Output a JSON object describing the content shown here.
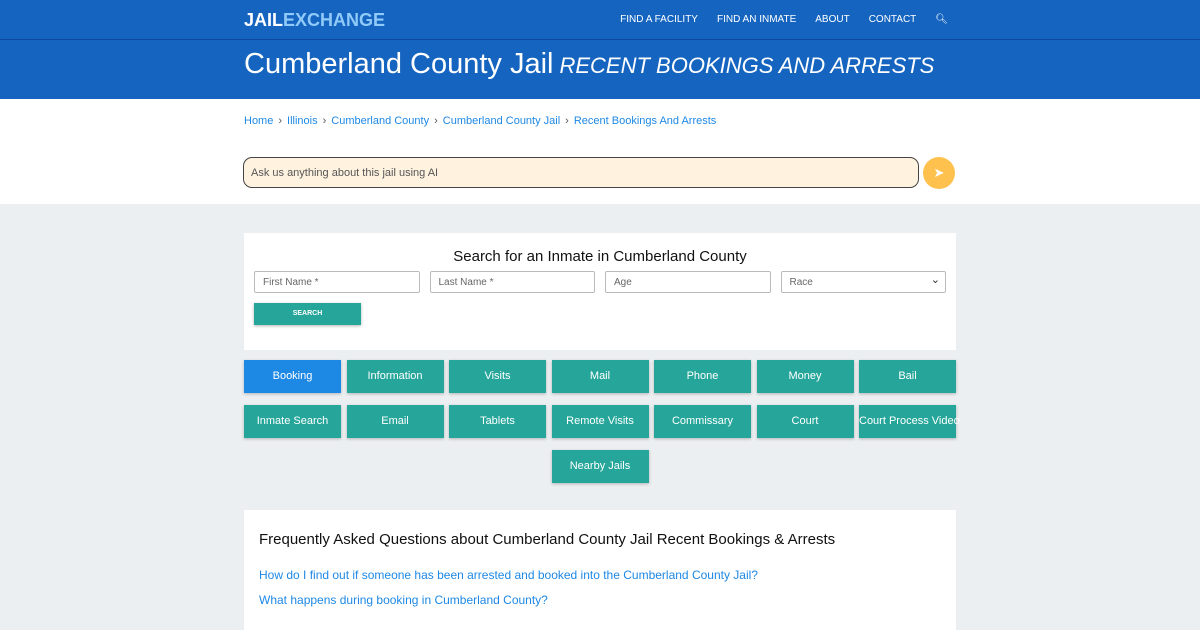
{
  "nav": {
    "logo_a": "JAIL",
    "logo_b": "EXCHANGE",
    "items": [
      "FIND A FACILITY",
      "FIND AN INMATE",
      "ABOUT",
      "CONTACT"
    ]
  },
  "hero": {
    "title": "Cumberland County Jail",
    "subtitle": "RECENT BOOKINGS AND ARRESTS"
  },
  "breadcrumb": [
    "Home",
    "Illinois",
    "Cumberland County",
    "Cumberland County Jail",
    "Recent Bookings And Arrests"
  ],
  "ai": {
    "placeholder": "Ask us anything about this jail using AI"
  },
  "search": {
    "title": "Search for an Inmate in Cumberland County",
    "first": "First Name *",
    "last": "Last Name *",
    "age": "Age",
    "race": "Race",
    "button": "SEARCH"
  },
  "buttons": [
    "Booking",
    "Information",
    "Visits",
    "Mail",
    "Phone",
    "Money",
    "Bail",
    "Inmate Search",
    "Email",
    "Tablets",
    "Remote Visits",
    "Commissary",
    "Court",
    "Court Process Video",
    "Nearby Jails"
  ],
  "faq": {
    "title": "Frequently Asked Questions about Cumberland County Jail Recent Bookings & Arrests",
    "questions": [
      "How do I find out if someone has been arrested and booked into the Cumberland County Jail?",
      "What happens during booking in Cumberland County?"
    ]
  }
}
